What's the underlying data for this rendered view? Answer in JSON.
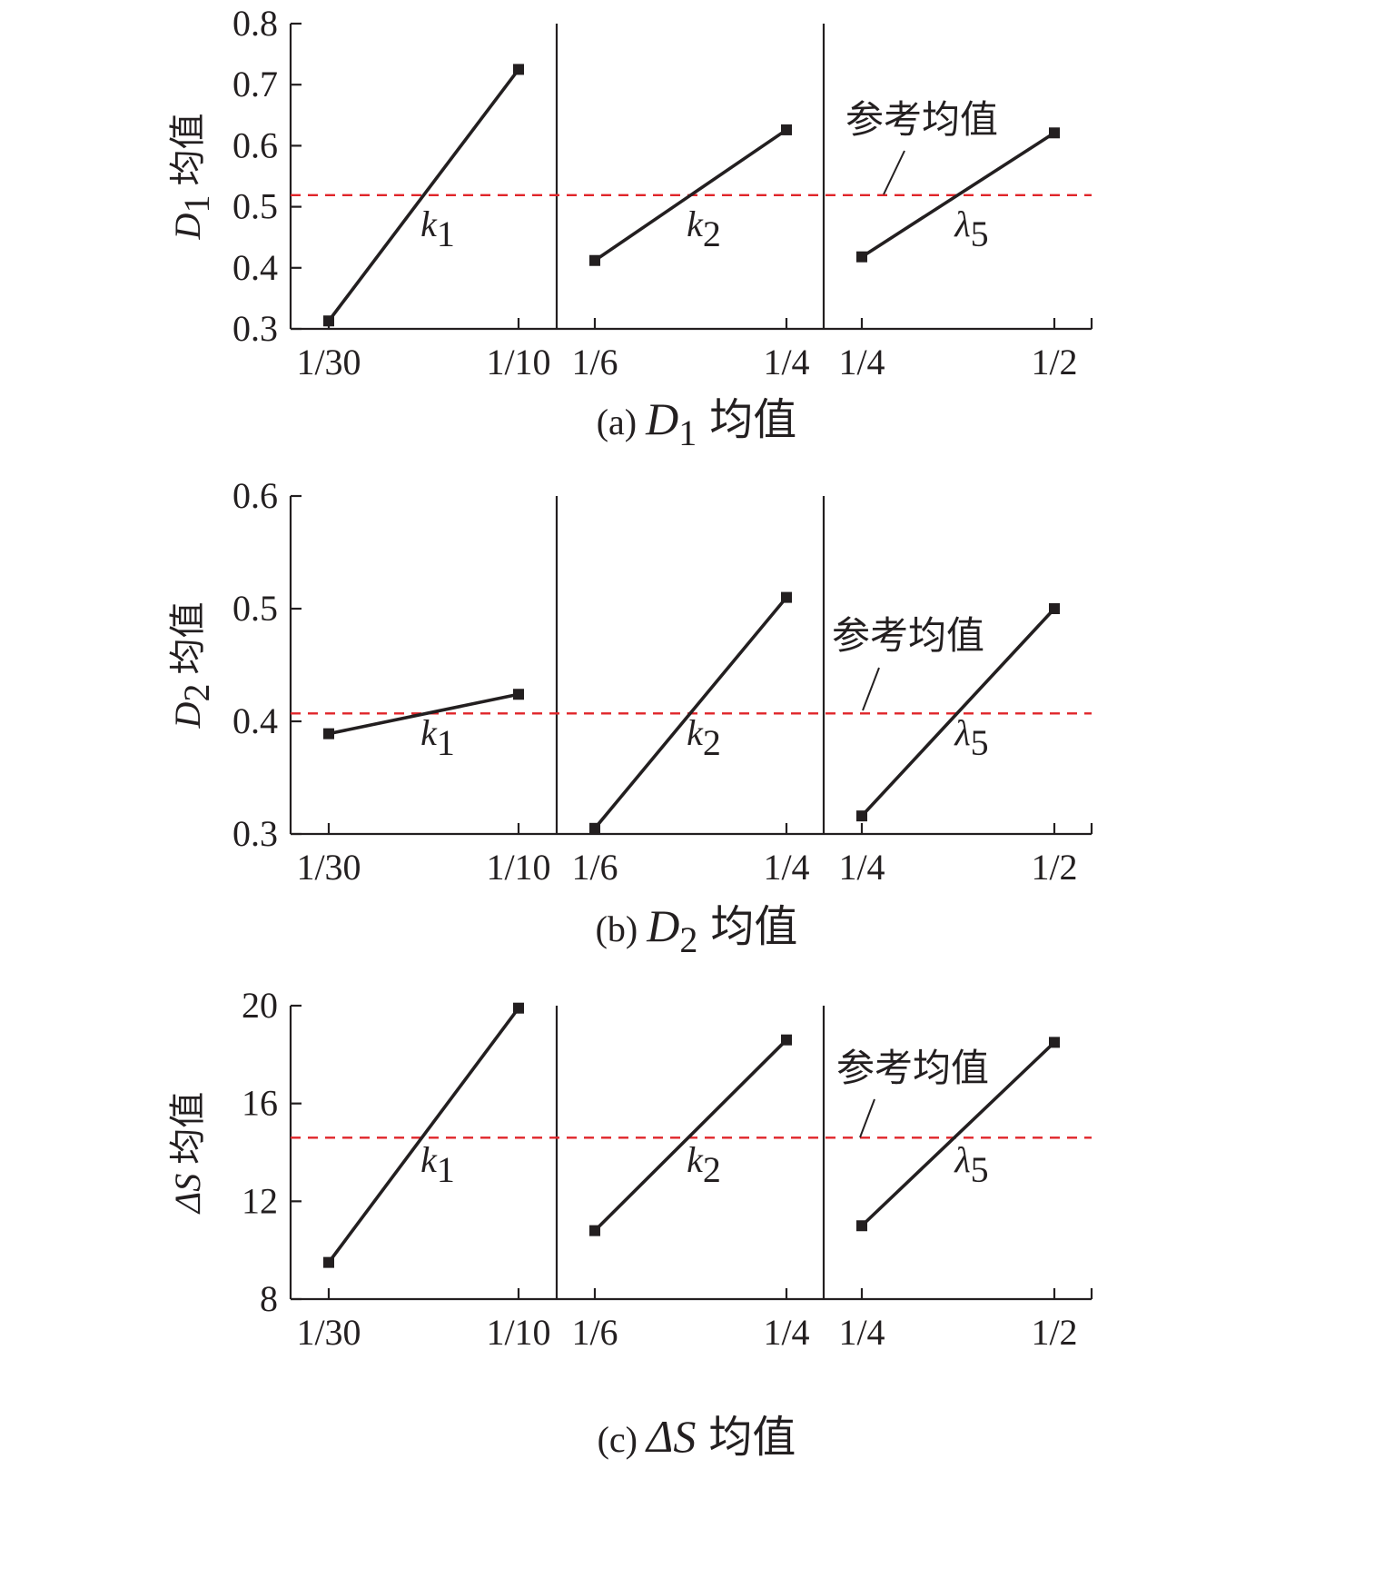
{
  "colors": {
    "line": "#231f20",
    "reference": "#e0252a"
  },
  "chart_data": [
    {
      "type": "line",
      "caption": {
        "prefix": "(a)",
        "var": "D",
        "sub": "1",
        "suffix": "均值"
      },
      "ylabel": {
        "var": "D",
        "sub": "1",
        "suffix": "均值"
      },
      "ylim": [
        0.3,
        0.8
      ],
      "yticks": [
        "0.3",
        "0.4",
        "0.5",
        "0.6",
        "0.7",
        "0.8"
      ],
      "reference": {
        "label": "参考均值",
        "value": 0.519
      },
      "panels": [
        {
          "x_ticks": [
            "1/30",
            "1/10"
          ],
          "values": [
            0.313,
            0.725
          ],
          "label": {
            "var": "k",
            "sub": "1"
          }
        },
        {
          "x_ticks": [
            "1/6",
            "1/4"
          ],
          "values": [
            0.412,
            0.626
          ],
          "label": {
            "var": "k",
            "sub": "2"
          }
        },
        {
          "x_ticks": [
            "1/4",
            "1/2"
          ],
          "values": [
            0.418,
            0.621
          ],
          "label": {
            "var": "λ",
            "sub": "5"
          }
        }
      ]
    },
    {
      "type": "line",
      "caption": {
        "prefix": "(b)",
        "var": "D",
        "sub": "2",
        "suffix": "均值"
      },
      "ylabel": {
        "var": "D",
        "sub": "2",
        "suffix": "均值"
      },
      "ylim": [
        0.3,
        0.6
      ],
      "yticks": [
        "0.3",
        "0.4",
        "0.5",
        "0.6"
      ],
      "reference": {
        "label": "参考均值",
        "value": 0.407
      },
      "panels": [
        {
          "x_ticks": [
            "1/30",
            "1/10"
          ],
          "values": [
            0.389,
            0.424
          ],
          "label": {
            "var": "k",
            "sub": "1"
          }
        },
        {
          "x_ticks": [
            "1/6",
            "1/4"
          ],
          "values": [
            0.305,
            0.51
          ],
          "label": {
            "var": "k",
            "sub": "2"
          }
        },
        {
          "x_ticks": [
            "1/4",
            "1/2"
          ],
          "values": [
            0.316,
            0.5
          ],
          "label": {
            "var": "λ",
            "sub": "5"
          }
        }
      ]
    },
    {
      "type": "line",
      "caption": {
        "prefix": "(c)",
        "var": "ΔS",
        "sub": "",
        "suffix": "均值"
      },
      "ylabel": {
        "var": "ΔS",
        "sub": "",
        "suffix": "均值"
      },
      "ylim": [
        8,
        20
      ],
      "yticks": [
        "8",
        "12",
        "16",
        "20"
      ],
      "reference": {
        "label": "参考均值",
        "value": 14.6
      },
      "panels": [
        {
          "x_ticks": [
            "1/30",
            "1/10"
          ],
          "values": [
            9.5,
            19.9
          ],
          "label": {
            "var": "k",
            "sub": "1"
          }
        },
        {
          "x_ticks": [
            "1/6",
            "1/4"
          ],
          "values": [
            10.8,
            18.6
          ],
          "label": {
            "var": "k",
            "sub": "2"
          }
        },
        {
          "x_ticks": [
            "1/4",
            "1/2"
          ],
          "values": [
            11.0,
            18.5
          ],
          "label": {
            "var": "λ",
            "sub": "5"
          }
        }
      ]
    }
  ]
}
